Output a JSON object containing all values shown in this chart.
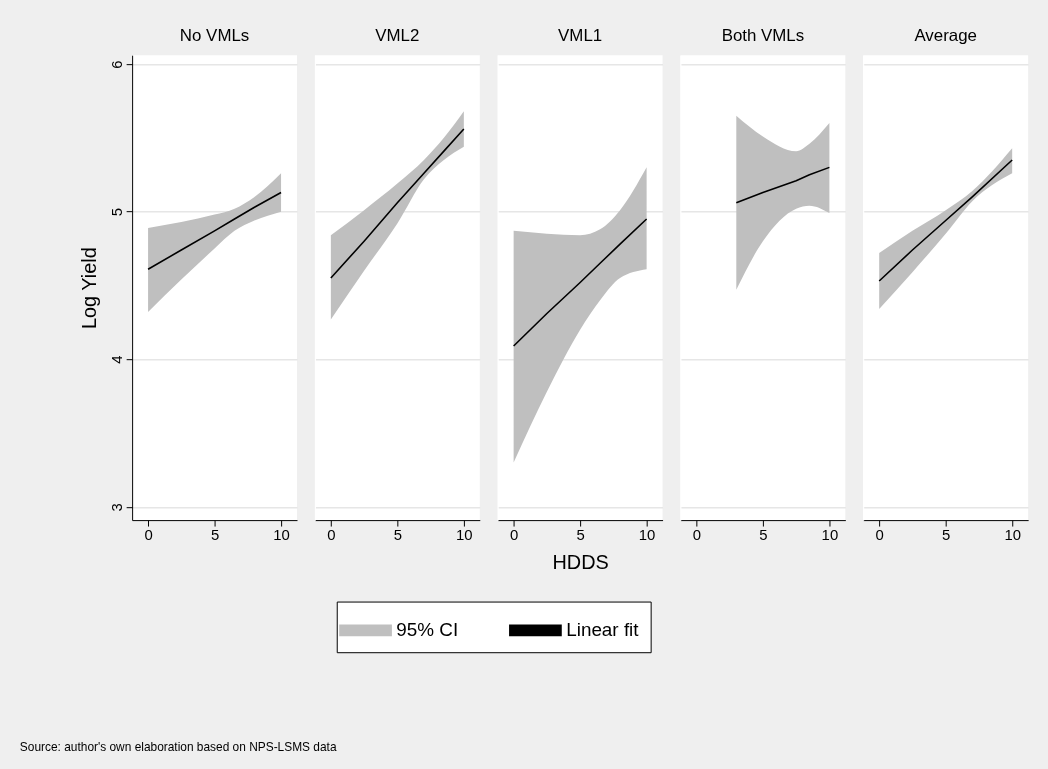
{
  "chart_data": [
    {
      "type": "line",
      "title": "No VMLs",
      "ylabel": "Log Yield",
      "x": [
        0,
        2.5,
        5,
        6.5,
        8,
        10
      ],
      "xlim": [
        -1.2,
        11.2
      ],
      "xticks": [
        0,
        5,
        10
      ],
      "ylim": [
        2.91,
        6.06
      ],
      "yticks": [
        3,
        4,
        5,
        6
      ],
      "grid": "y",
      "legend": "bottom",
      "annotations": [
        "Source: author's own elaboration based on NPS-LSMS data"
      ],
      "series": [
        {
          "name": "95% CI",
          "type": "area",
          "color": "#bfbfbf",
          "values": [
            null,
            null,
            null,
            null,
            null,
            null
          ],
          "lower": [
            4.32,
            4.54,
            4.75,
            4.87,
            4.94,
            5.0
          ],
          "upper": [
            4.89,
            4.93,
            4.98,
            5.02,
            5.1,
            5.26
          ]
        },
        {
          "name": "Linear fit",
          "type": "line",
          "color": "#000000",
          "values": [
            4.61,
            4.74,
            4.87,
            4.95,
            5.03,
            5.13
          ]
        }
      ]
    },
    {
      "type": "line",
      "title": "VML2",
      "x": [
        0,
        2.5,
        5,
        7,
        8.5,
        10
      ],
      "xlim": [
        -1.2,
        11.2
      ],
      "xticks": [
        0,
        5,
        10
      ],
      "ylim": [
        2.91,
        6.06
      ],
      "yticks": [
        3,
        4,
        5,
        6
      ],
      "grid": "y",
      "tick_labels": "x",
      "series": [
        {
          "type": "area",
          "color": "#bfbfbf",
          "values": [
            null,
            null,
            null,
            null,
            null,
            null
          ],
          "lower": [
            4.27,
            4.6,
            4.92,
            5.22,
            5.35,
            5.44
          ],
          "upper": [
            4.84,
            5.01,
            5.19,
            5.35,
            5.5,
            5.68
          ]
        },
        {
          "type": "line",
          "color": "#000000",
          "values": [
            4.55,
            4.8,
            5.06,
            5.26,
            5.41,
            5.56
          ]
        }
      ]
    },
    {
      "type": "line",
      "title": "VML1",
      "xlabel": "HDDS",
      "x": [
        0,
        2.5,
        5,
        6.5,
        8,
        10
      ],
      "xlim": [
        -1.2,
        11.2
      ],
      "xticks": [
        0,
        5,
        10
      ],
      "ylim": [
        2.91,
        6.06
      ],
      "yticks": [
        3,
        4,
        5,
        6
      ],
      "grid": "y",
      "tick_labels": "x",
      "series": [
        {
          "type": "area",
          "color": "#bfbfbf",
          "values": [
            null,
            null,
            null,
            null,
            null,
            null
          ],
          "lower": [
            3.3,
            3.78,
            4.2,
            4.4,
            4.55,
            4.61
          ],
          "upper": [
            4.87,
            4.85,
            4.84,
            4.88,
            5.01,
            5.3
          ]
        },
        {
          "type": "line",
          "color": "#000000",
          "values": [
            4.09,
            4.31,
            4.52,
            4.65,
            4.78,
            4.95
          ]
        }
      ]
    },
    {
      "type": "line",
      "title": "Both VMLs",
      "x": [
        3,
        5,
        7.5,
        8.5,
        10
      ],
      "xlim": [
        -1.2,
        11.2
      ],
      "xticks": [
        0,
        5,
        10
      ],
      "ylim": [
        2.91,
        6.06
      ],
      "yticks": [
        3,
        4,
        5,
        6
      ],
      "grid": "y",
      "tick_labels": "x",
      "series": [
        {
          "type": "area",
          "color": "#bfbfbf",
          "values": [
            null,
            null,
            null,
            null,
            null
          ],
          "lower": [
            4.47,
            4.8,
            5.02,
            5.04,
            4.99
          ],
          "upper": [
            5.65,
            5.51,
            5.41,
            5.46,
            5.6
          ]
        },
        {
          "type": "line",
          "color": "#000000",
          "values": [
            5.06,
            5.13,
            5.21,
            5.25,
            5.3
          ]
        }
      ]
    },
    {
      "type": "line",
      "title": "Average",
      "x": [
        0,
        2.5,
        5,
        7,
        10
      ],
      "xlim": [
        -1.2,
        11.2
      ],
      "xticks": [
        0,
        5,
        10
      ],
      "ylim": [
        2.91,
        6.06
      ],
      "yticks": [
        3,
        4,
        5,
        6
      ],
      "grid": "y",
      "tick_labels": "x",
      "series": [
        {
          "type": "area",
          "color": "#bfbfbf",
          "values": [
            null,
            null,
            null,
            null,
            null
          ],
          "lower": [
            4.34,
            4.59,
            4.85,
            5.07,
            5.26
          ],
          "upper": [
            4.72,
            4.87,
            5.01,
            5.14,
            5.43
          ]
        },
        {
          "type": "line",
          "color": "#000000",
          "values": [
            4.53,
            4.74,
            4.94,
            5.1,
            5.35
          ]
        }
      ]
    }
  ]
}
